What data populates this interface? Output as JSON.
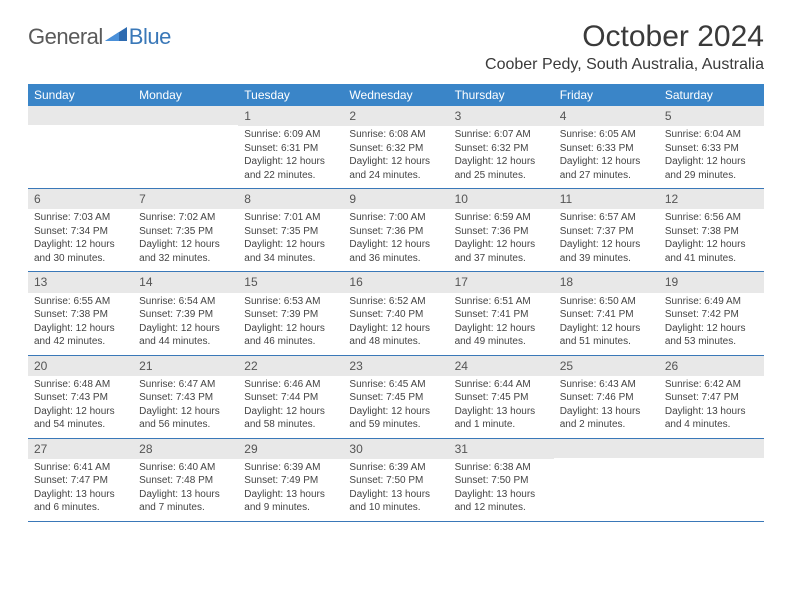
{
  "logo": {
    "part1": "General",
    "part2": "Blue",
    "accent_color": "#3a78b8"
  },
  "title": "October 2024",
  "location": "Coober Pedy, South Australia, Australia",
  "colors": {
    "header_bg": "#3a85c8",
    "header_text": "#ffffff",
    "daynum_bg": "#e8e8e8",
    "border": "#3a78b8",
    "body_text": "#444444"
  },
  "day_headers": [
    "Sunday",
    "Monday",
    "Tuesday",
    "Wednesday",
    "Thursday",
    "Friday",
    "Saturday"
  ],
  "weeks": [
    [
      {
        "blank": true
      },
      {
        "blank": true
      },
      {
        "n": "1",
        "sr": "6:09 AM",
        "ss": "6:31 PM",
        "dl": "12 hours and 22 minutes."
      },
      {
        "n": "2",
        "sr": "6:08 AM",
        "ss": "6:32 PM",
        "dl": "12 hours and 24 minutes."
      },
      {
        "n": "3",
        "sr": "6:07 AM",
        "ss": "6:32 PM",
        "dl": "12 hours and 25 minutes."
      },
      {
        "n": "4",
        "sr": "6:05 AM",
        "ss": "6:33 PM",
        "dl": "12 hours and 27 minutes."
      },
      {
        "n": "5",
        "sr": "6:04 AM",
        "ss": "6:33 PM",
        "dl": "12 hours and 29 minutes."
      }
    ],
    [
      {
        "n": "6",
        "sr": "7:03 AM",
        "ss": "7:34 PM",
        "dl": "12 hours and 30 minutes."
      },
      {
        "n": "7",
        "sr": "7:02 AM",
        "ss": "7:35 PM",
        "dl": "12 hours and 32 minutes."
      },
      {
        "n": "8",
        "sr": "7:01 AM",
        "ss": "7:35 PM",
        "dl": "12 hours and 34 minutes."
      },
      {
        "n": "9",
        "sr": "7:00 AM",
        "ss": "7:36 PM",
        "dl": "12 hours and 36 minutes."
      },
      {
        "n": "10",
        "sr": "6:59 AM",
        "ss": "7:36 PM",
        "dl": "12 hours and 37 minutes."
      },
      {
        "n": "11",
        "sr": "6:57 AM",
        "ss": "7:37 PM",
        "dl": "12 hours and 39 minutes."
      },
      {
        "n": "12",
        "sr": "6:56 AM",
        "ss": "7:38 PM",
        "dl": "12 hours and 41 minutes."
      }
    ],
    [
      {
        "n": "13",
        "sr": "6:55 AM",
        "ss": "7:38 PM",
        "dl": "12 hours and 42 minutes."
      },
      {
        "n": "14",
        "sr": "6:54 AM",
        "ss": "7:39 PM",
        "dl": "12 hours and 44 minutes."
      },
      {
        "n": "15",
        "sr": "6:53 AM",
        "ss": "7:39 PM",
        "dl": "12 hours and 46 minutes."
      },
      {
        "n": "16",
        "sr": "6:52 AM",
        "ss": "7:40 PM",
        "dl": "12 hours and 48 minutes."
      },
      {
        "n": "17",
        "sr": "6:51 AM",
        "ss": "7:41 PM",
        "dl": "12 hours and 49 minutes."
      },
      {
        "n": "18",
        "sr": "6:50 AM",
        "ss": "7:41 PM",
        "dl": "12 hours and 51 minutes."
      },
      {
        "n": "19",
        "sr": "6:49 AM",
        "ss": "7:42 PM",
        "dl": "12 hours and 53 minutes."
      }
    ],
    [
      {
        "n": "20",
        "sr": "6:48 AM",
        "ss": "7:43 PM",
        "dl": "12 hours and 54 minutes."
      },
      {
        "n": "21",
        "sr": "6:47 AM",
        "ss": "7:43 PM",
        "dl": "12 hours and 56 minutes."
      },
      {
        "n": "22",
        "sr": "6:46 AM",
        "ss": "7:44 PM",
        "dl": "12 hours and 58 minutes."
      },
      {
        "n": "23",
        "sr": "6:45 AM",
        "ss": "7:45 PM",
        "dl": "12 hours and 59 minutes."
      },
      {
        "n": "24",
        "sr": "6:44 AM",
        "ss": "7:45 PM",
        "dl": "13 hours and 1 minute."
      },
      {
        "n": "25",
        "sr": "6:43 AM",
        "ss": "7:46 PM",
        "dl": "13 hours and 2 minutes."
      },
      {
        "n": "26",
        "sr": "6:42 AM",
        "ss": "7:47 PM",
        "dl": "13 hours and 4 minutes."
      }
    ],
    [
      {
        "n": "27",
        "sr": "6:41 AM",
        "ss": "7:47 PM",
        "dl": "13 hours and 6 minutes."
      },
      {
        "n": "28",
        "sr": "6:40 AM",
        "ss": "7:48 PM",
        "dl": "13 hours and 7 minutes."
      },
      {
        "n": "29",
        "sr": "6:39 AM",
        "ss": "7:49 PM",
        "dl": "13 hours and 9 minutes."
      },
      {
        "n": "30",
        "sr": "6:39 AM",
        "ss": "7:50 PM",
        "dl": "13 hours and 10 minutes."
      },
      {
        "n": "31",
        "sr": "6:38 AM",
        "ss": "7:50 PM",
        "dl": "13 hours and 12 minutes."
      },
      {
        "blank": true
      },
      {
        "blank": true
      }
    ]
  ],
  "labels": {
    "sunrise": "Sunrise:",
    "sunset": "Sunset:",
    "daylight": "Daylight:"
  }
}
